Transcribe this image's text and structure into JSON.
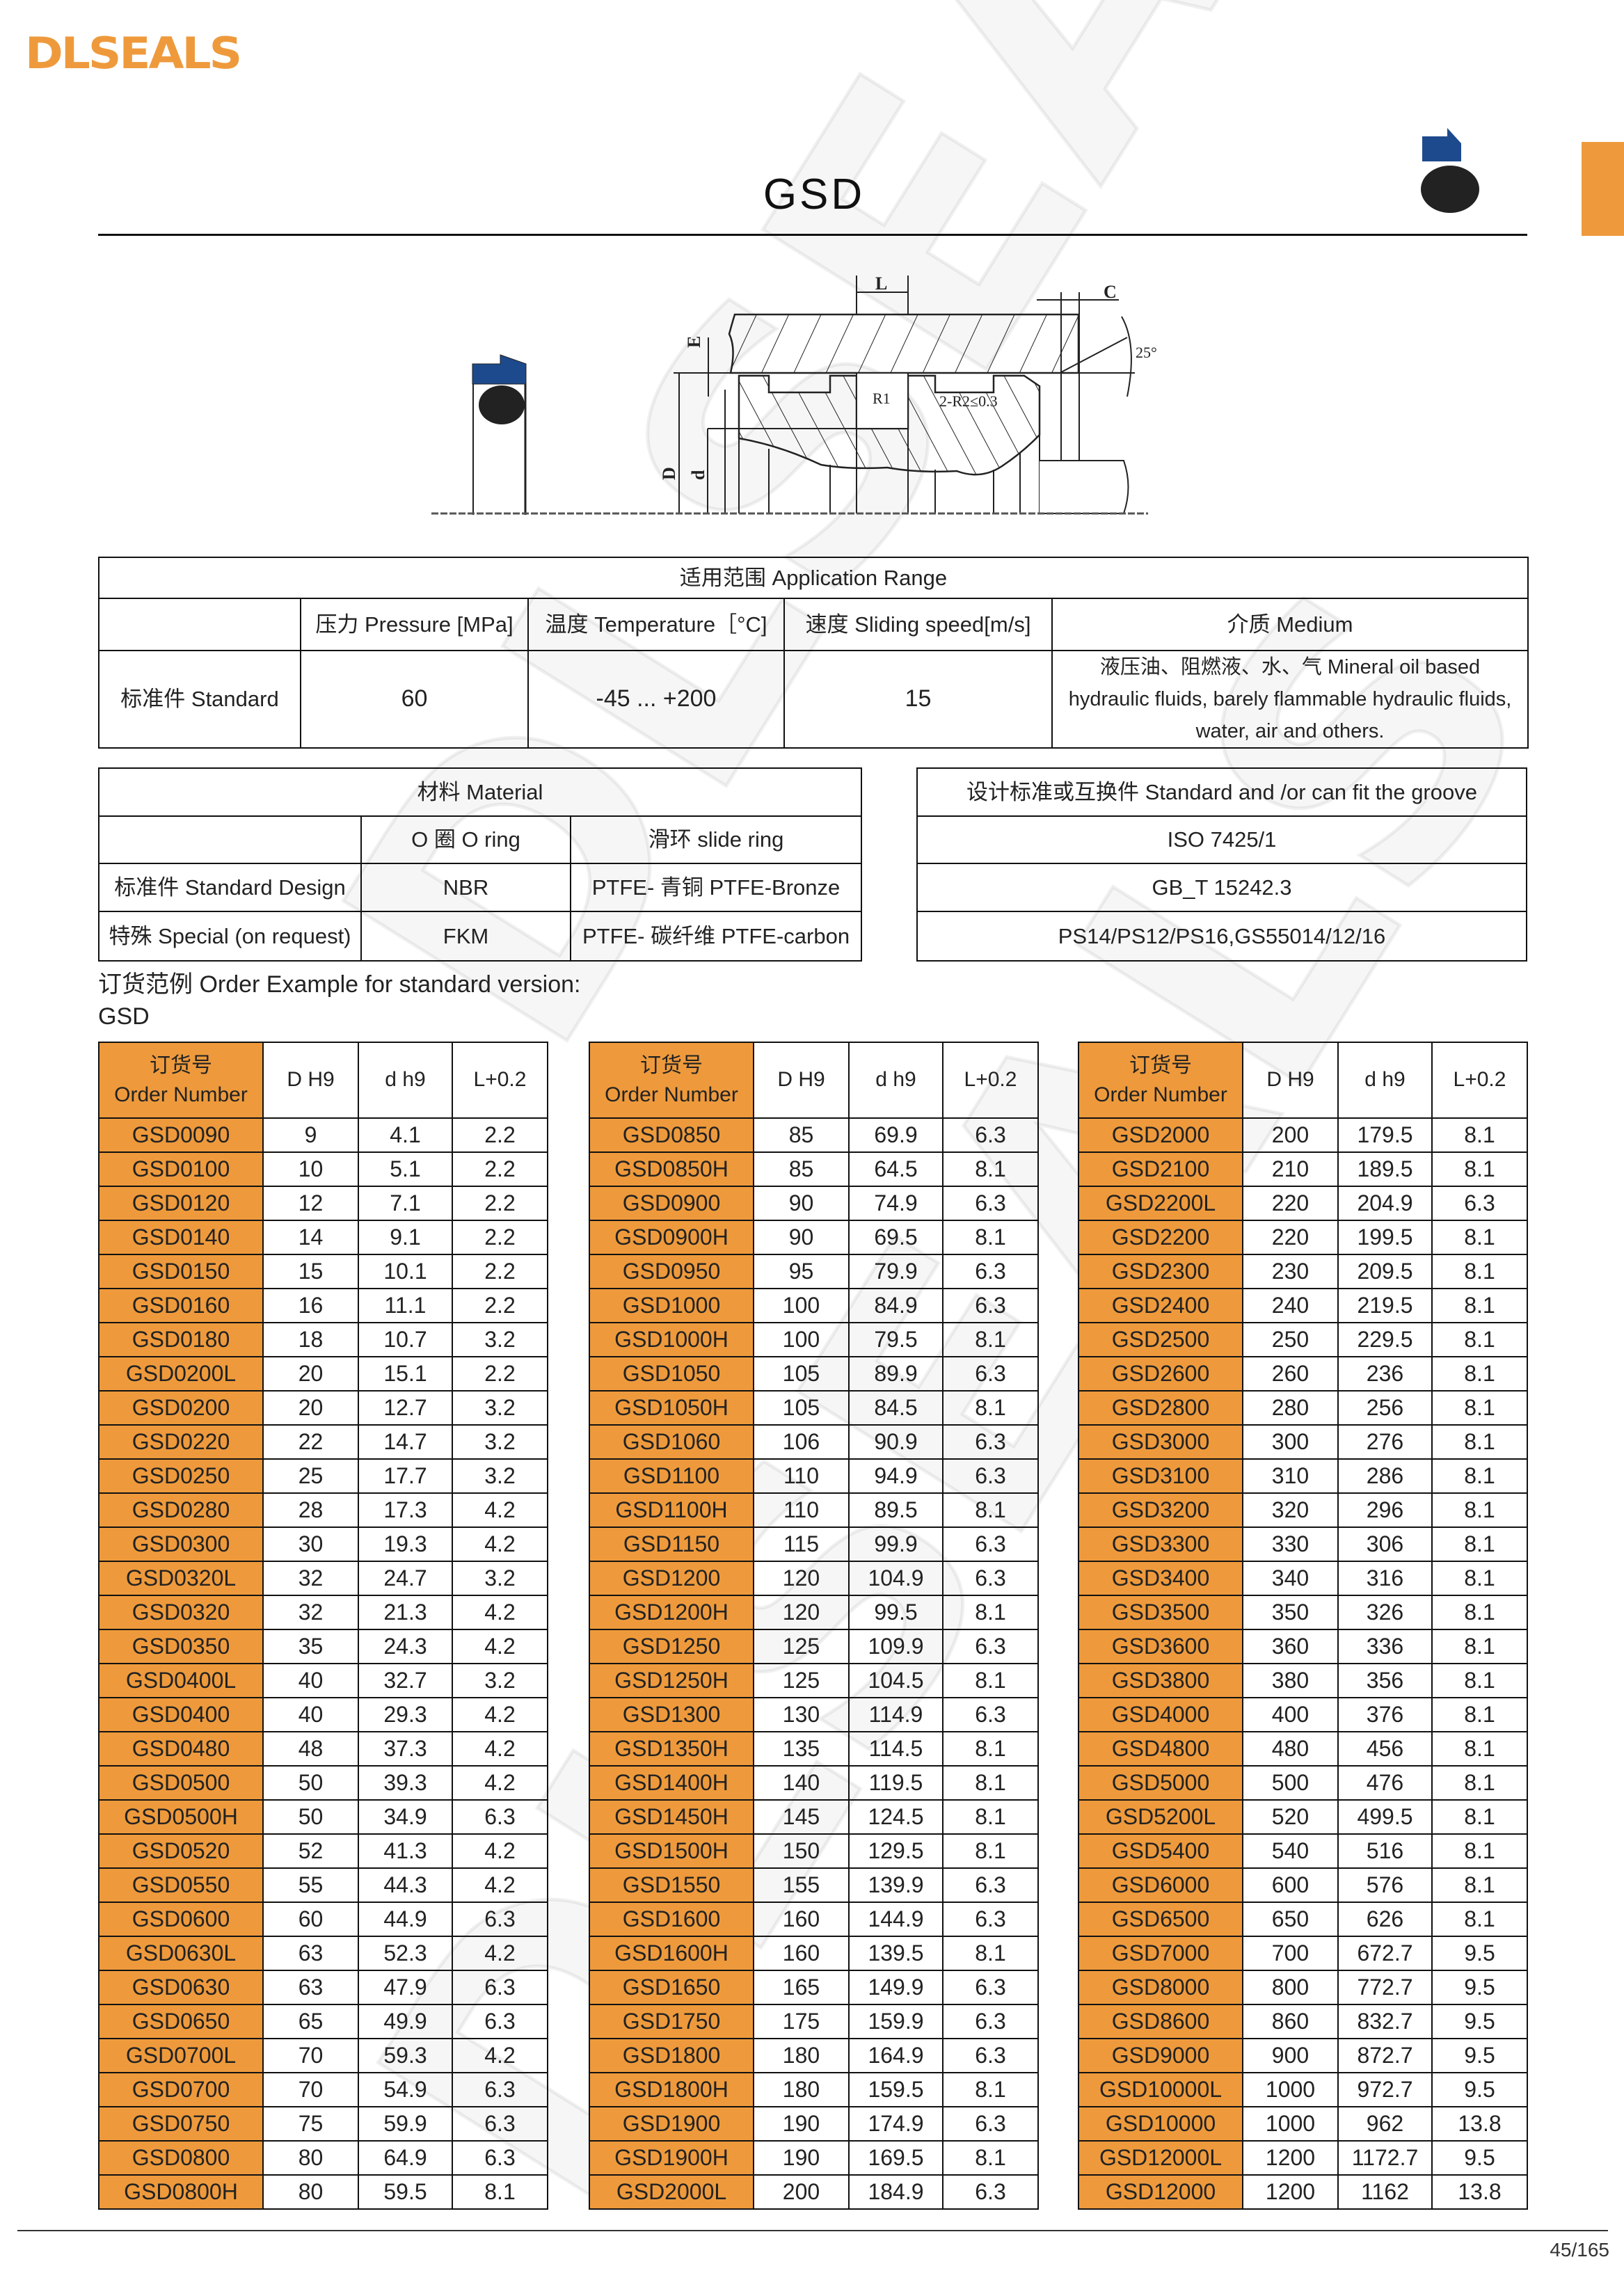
{
  "brand": {
    "logo_text": "DLSEALS",
    "watermark_text": "DLSEALS",
    "accent_color": "#EE9A3C",
    "profile_color": "#1D4A8C"
  },
  "header": {
    "title": "GSD"
  },
  "drawing": {
    "labels": {
      "L": "L",
      "C": "C",
      "E": "E",
      "angle": "25°",
      "R1": "R1",
      "R2": "2-R2≤0.3",
      "D": "D",
      "d": "d"
    }
  },
  "application_range": {
    "title": "适用范围 Application Range",
    "headers": [
      "",
      "压力 Pressure [MPa]",
      "温度 Temperature［°C]",
      "速度 Sliding speed[m/s]",
      "介质 Medium"
    ],
    "row": {
      "label": "标准件 Standard",
      "pressure": "60",
      "temperature": "-45 ... +200",
      "speed": "15",
      "medium": "液压油、阻燃液、水、气 Mineral oil based hydraulic fluids, barely flammable hydraulic fluids, water, air and others."
    }
  },
  "material": {
    "title": "材料 Material",
    "headers": [
      "",
      "O 圈 O ring",
      "滑环 slide ring"
    ],
    "rows": [
      {
        "label": "标准件 Standard Design",
        "o_ring": "NBR",
        "slide_ring": "PTFE- 青铜 PTFE-Bronze"
      },
      {
        "label": "特殊 Special (on request)",
        "o_ring": "FKM",
        "slide_ring": "PTFE- 碳纤维 PTFE-carbon"
      }
    ]
  },
  "standards": {
    "title": "设计标准或互换件 Standard and /or can fit the groove",
    "items": [
      "ISO 7425/1",
      "GB_T 15242.3",
      "PS14/PS12/PS16,GS55014/12/16"
    ]
  },
  "order_example": {
    "line1": "订货范例 Order Example for standard version:",
    "line2": "GSD"
  },
  "size_tables": {
    "headers": {
      "order_cn": "订货号",
      "order_en": "Order Number",
      "D": "D H9",
      "d": "d h9",
      "L": "L+0.2"
    },
    "tables": [
      [
        [
          "GSD0090",
          "9",
          "4.1",
          "2.2"
        ],
        [
          "GSD0100",
          "10",
          "5.1",
          "2.2"
        ],
        [
          "GSD0120",
          "12",
          "7.1",
          "2.2"
        ],
        [
          "GSD0140",
          "14",
          "9.1",
          "2.2"
        ],
        [
          "GSD0150",
          "15",
          "10.1",
          "2.2"
        ],
        [
          "GSD0160",
          "16",
          "11.1",
          "2.2"
        ],
        [
          "GSD0180",
          "18",
          "10.7",
          "3.2"
        ],
        [
          "GSD0200L",
          "20",
          "15.1",
          "2.2"
        ],
        [
          "GSD0200",
          "20",
          "12.7",
          "3.2"
        ],
        [
          "GSD0220",
          "22",
          "14.7",
          "3.2"
        ],
        [
          "GSD0250",
          "25",
          "17.7",
          "3.2"
        ],
        [
          "GSD0280",
          "28",
          "17.3",
          "4.2"
        ],
        [
          "GSD0300",
          "30",
          "19.3",
          "4.2"
        ],
        [
          "GSD0320L",
          "32",
          "24.7",
          "3.2"
        ],
        [
          "GSD0320",
          "32",
          "21.3",
          "4.2"
        ],
        [
          "GSD0350",
          "35",
          "24.3",
          "4.2"
        ],
        [
          "GSD0400L",
          "40",
          "32.7",
          "3.2"
        ],
        [
          "GSD0400",
          "40",
          "29.3",
          "4.2"
        ],
        [
          "GSD0480",
          "48",
          "37.3",
          "4.2"
        ],
        [
          "GSD0500",
          "50",
          "39.3",
          "4.2"
        ],
        [
          "GSD0500H",
          "50",
          "34.9",
          "6.3"
        ],
        [
          "GSD0520",
          "52",
          "41.3",
          "4.2"
        ],
        [
          "GSD0550",
          "55",
          "44.3",
          "4.2"
        ],
        [
          "GSD0600",
          "60",
          "44.9",
          "6.3"
        ],
        [
          "GSD0630L",
          "63",
          "52.3",
          "4.2"
        ],
        [
          "GSD0630",
          "63",
          "47.9",
          "6.3"
        ],
        [
          "GSD0650",
          "65",
          "49.9",
          "6.3"
        ],
        [
          "GSD0700L",
          "70",
          "59.3",
          "4.2"
        ],
        [
          "GSD0700",
          "70",
          "54.9",
          "6.3"
        ],
        [
          "GSD0750",
          "75",
          "59.9",
          "6.3"
        ],
        [
          "GSD0800",
          "80",
          "64.9",
          "6.3"
        ],
        [
          "GSD0800H",
          "80",
          "59.5",
          "8.1"
        ]
      ],
      [
        [
          "GSD0850",
          "85",
          "69.9",
          "6.3"
        ],
        [
          "GSD0850H",
          "85",
          "64.5",
          "8.1"
        ],
        [
          "GSD0900",
          "90",
          "74.9",
          "6.3"
        ],
        [
          "GSD0900H",
          "90",
          "69.5",
          "8.1"
        ],
        [
          "GSD0950",
          "95",
          "79.9",
          "6.3"
        ],
        [
          "GSD1000",
          "100",
          "84.9",
          "6.3"
        ],
        [
          "GSD1000H",
          "100",
          "79.5",
          "8.1"
        ],
        [
          "GSD1050",
          "105",
          "89.9",
          "6.3"
        ],
        [
          "GSD1050H",
          "105",
          "84.5",
          "8.1"
        ],
        [
          "GSD1060",
          "106",
          "90.9",
          "6.3"
        ],
        [
          "GSD1100",
          "110",
          "94.9",
          "6.3"
        ],
        [
          "GSD1100H",
          "110",
          "89.5",
          "8.1"
        ],
        [
          "GSD1150",
          "115",
          "99.9",
          "6.3"
        ],
        [
          "GSD1200",
          "120",
          "104.9",
          "6.3"
        ],
        [
          "GSD1200H",
          "120",
          "99.5",
          "8.1"
        ],
        [
          "GSD1250",
          "125",
          "109.9",
          "6.3"
        ],
        [
          "GSD1250H",
          "125",
          "104.5",
          "8.1"
        ],
        [
          "GSD1300",
          "130",
          "114.9",
          "6.3"
        ],
        [
          "GSD1350H",
          "135",
          "114.5",
          "8.1"
        ],
        [
          "GSD1400H",
          "140",
          "119.5",
          "8.1"
        ],
        [
          "GSD1450H",
          "145",
          "124.5",
          "8.1"
        ],
        [
          "GSD1500H",
          "150",
          "129.5",
          "8.1"
        ],
        [
          "GSD1550",
          "155",
          "139.9",
          "6.3"
        ],
        [
          "GSD1600",
          "160",
          "144.9",
          "6.3"
        ],
        [
          "GSD1600H",
          "160",
          "139.5",
          "8.1"
        ],
        [
          "GSD1650",
          "165",
          "149.9",
          "6.3"
        ],
        [
          "GSD1750",
          "175",
          "159.9",
          "6.3"
        ],
        [
          "GSD1800",
          "180",
          "164.9",
          "6.3"
        ],
        [
          "GSD1800H",
          "180",
          "159.5",
          "8.1"
        ],
        [
          "GSD1900",
          "190",
          "174.9",
          "6.3"
        ],
        [
          "GSD1900H",
          "190",
          "169.5",
          "8.1"
        ],
        [
          "GSD2000L",
          "200",
          "184.9",
          "6.3"
        ]
      ],
      [
        [
          "GSD2000",
          "200",
          "179.5",
          "8.1"
        ],
        [
          "GSD2100",
          "210",
          "189.5",
          "8.1"
        ],
        [
          "GSD2200L",
          "220",
          "204.9",
          "6.3"
        ],
        [
          "GSD2200",
          "220",
          "199.5",
          "8.1"
        ],
        [
          "GSD2300",
          "230",
          "209.5",
          "8.1"
        ],
        [
          "GSD2400",
          "240",
          "219.5",
          "8.1"
        ],
        [
          "GSD2500",
          "250",
          "229.5",
          "8.1"
        ],
        [
          "GSD2600",
          "260",
          "236",
          "8.1"
        ],
        [
          "GSD2800",
          "280",
          "256",
          "8.1"
        ],
        [
          "GSD3000",
          "300",
          "276",
          "8.1"
        ],
        [
          "GSD3100",
          "310",
          "286",
          "8.1"
        ],
        [
          "GSD3200",
          "320",
          "296",
          "8.1"
        ],
        [
          "GSD3300",
          "330",
          "306",
          "8.1"
        ],
        [
          "GSD3400",
          "340",
          "316",
          "8.1"
        ],
        [
          "GSD3500",
          "350",
          "326",
          "8.1"
        ],
        [
          "GSD3600",
          "360",
          "336",
          "8.1"
        ],
        [
          "GSD3800",
          "380",
          "356",
          "8.1"
        ],
        [
          "GSD4000",
          "400",
          "376",
          "8.1"
        ],
        [
          "GSD4800",
          "480",
          "456",
          "8.1"
        ],
        [
          "GSD5000",
          "500",
          "476",
          "8.1"
        ],
        [
          "GSD5200L",
          "520",
          "499.5",
          "8.1"
        ],
        [
          "GSD5400",
          "540",
          "516",
          "8.1"
        ],
        [
          "GSD6000",
          "600",
          "576",
          "8.1"
        ],
        [
          "GSD6500",
          "650",
          "626",
          "8.1"
        ],
        [
          "GSD7000",
          "700",
          "672.7",
          "9.5"
        ],
        [
          "GSD8000",
          "800",
          "772.7",
          "9.5"
        ],
        [
          "GSD8600",
          "860",
          "832.7",
          "9.5"
        ],
        [
          "GSD9000",
          "900",
          "872.7",
          "9.5"
        ],
        [
          "GSD10000L",
          "1000",
          "972.7",
          "9.5"
        ],
        [
          "GSD10000",
          "1000",
          "962",
          "13.8"
        ],
        [
          "GSD12000L",
          "1200",
          "1172.7",
          "9.5"
        ],
        [
          "GSD12000",
          "1200",
          "1162",
          "13.8"
        ]
      ]
    ]
  },
  "footer": {
    "page": "45/165"
  }
}
